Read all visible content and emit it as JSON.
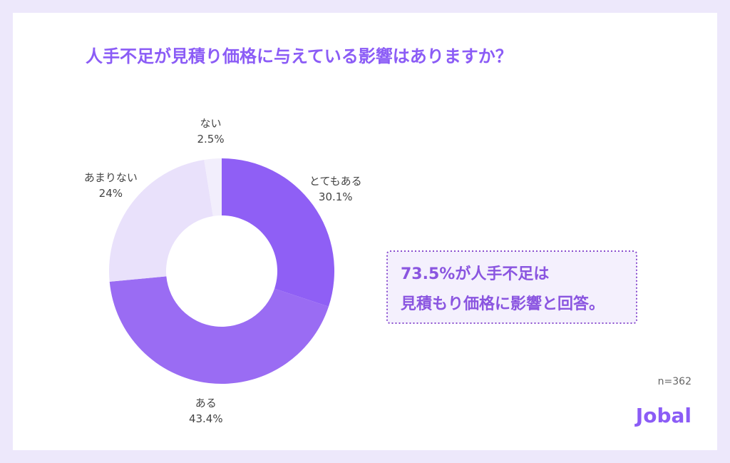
{
  "chart_data": {
    "type": "donut",
    "title": "人手不足が見積り価格に与えている影響はありますか？",
    "categories": [
      "とてもある",
      "ある",
      "あまりない",
      "ない"
    ],
    "values": [
      30.1,
      43.4,
      24,
      2.5
    ],
    "value_labels": [
      "30.1%",
      "43.4%",
      "24%",
      "2.5%"
    ],
    "colors": [
      "#8f5ff5",
      "#9a6cf3",
      "#e9e1fb",
      "#f2eefc"
    ],
    "annotation": [
      "73.5%が人手不足は",
      "見積もり価格に影響と回答。"
    ],
    "note": "n=362",
    "brand": "Jobal"
  }
}
